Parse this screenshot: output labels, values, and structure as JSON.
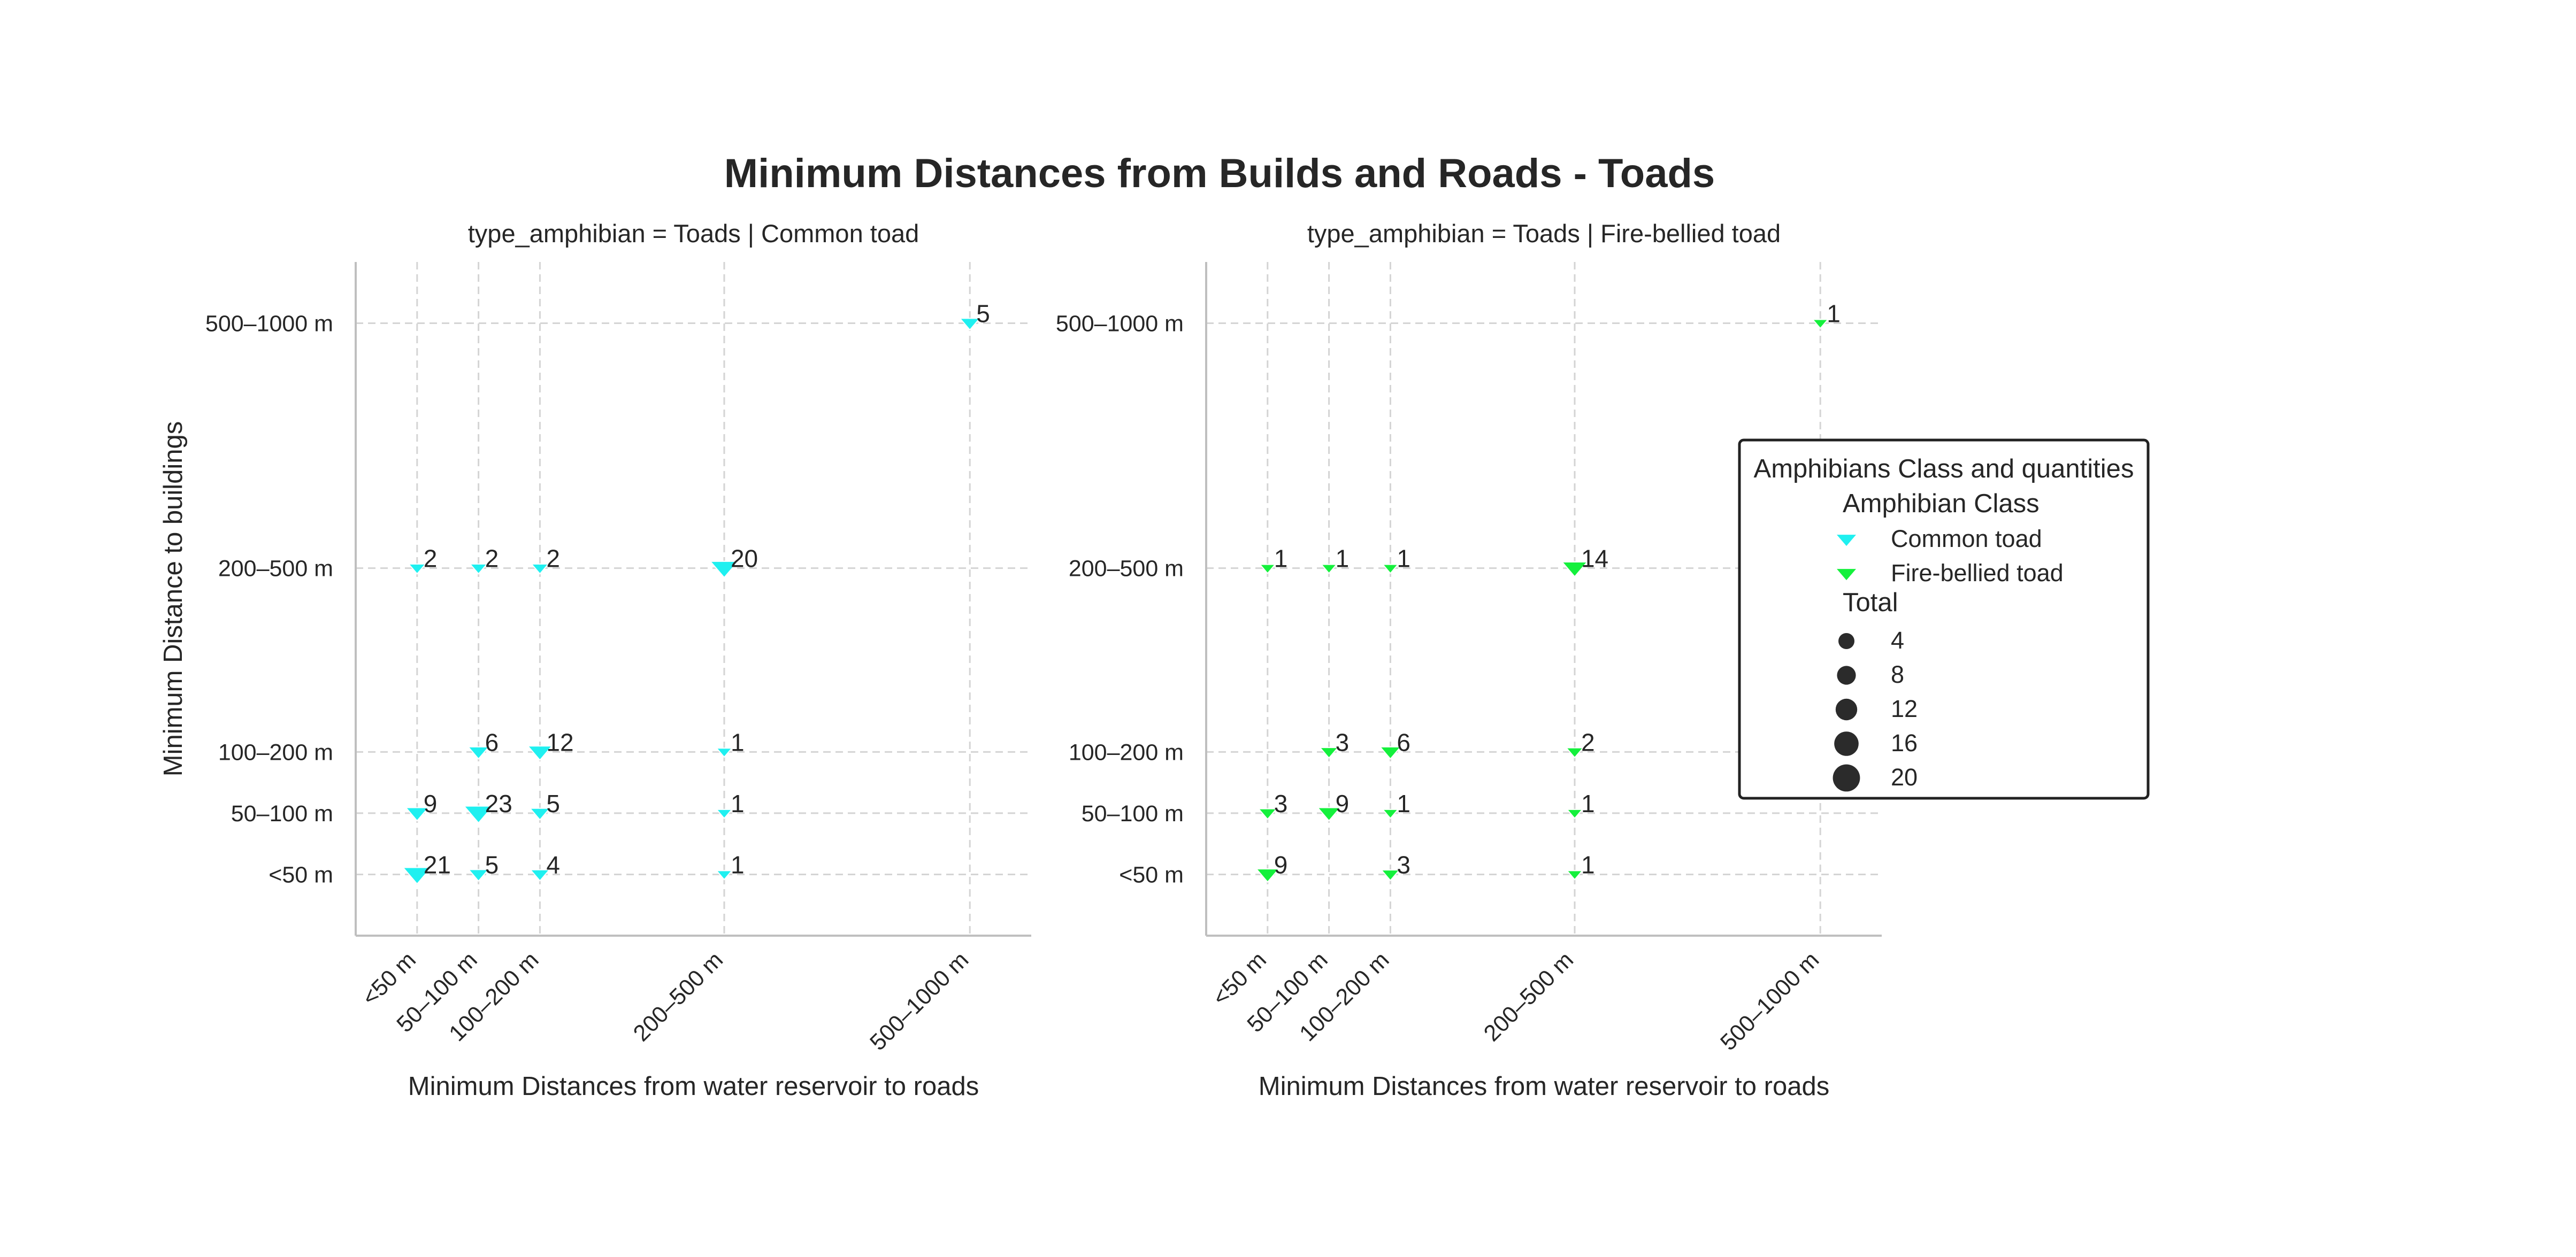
{
  "title": "Minimum Distances from Builds and Roads  - Toads",
  "categories": [
    "<50 m",
    "50–100 m",
    "100–200 m",
    "200–500 m",
    "500–1000 m"
  ],
  "colors": {
    "Common toad": "#1ff0f0",
    "Fire-bellied toad": "#14f03c",
    "axis": "#bfbfbf",
    "grid": "#d4d4d4",
    "size_marker": "#2b2b2b"
  },
  "legend": {
    "title": "Amphibians Class and quantities",
    "hue_title": "Amphibian Class",
    "hue_items": [
      "Common toad",
      "Fire-bellied toad"
    ],
    "size_title": "Total",
    "size_items": [
      "4",
      "8",
      "12",
      "16",
      "20"
    ],
    "placement": "right"
  },
  "chart_data": [
    {
      "type": "scatter",
      "title": "type_amphibian = Toads | Common toad",
      "xlabel": "Minimum Distances from water reservoir to roads",
      "ylabel": "Minimum Distance to buildings",
      "series_name": "Common toad",
      "marker": "triangle-down",
      "grid": true,
      "points": [
        {
          "x": "500–1000 m",
          "y": "500–1000 m",
          "total": 5
        },
        {
          "x": "<50 m",
          "y": "200–500 m",
          "total": 2
        },
        {
          "x": "50–100 m",
          "y": "200–500 m",
          "total": 2
        },
        {
          "x": "100–200 m",
          "y": "200–500 m",
          "total": 2
        },
        {
          "x": "200–500 m",
          "y": "200–500 m",
          "total": 20
        },
        {
          "x": "50–100 m",
          "y": "100–200 m",
          "total": 6
        },
        {
          "x": "100–200 m",
          "y": "100–200 m",
          "total": 12
        },
        {
          "x": "200–500 m",
          "y": "100–200 m",
          "total": 1
        },
        {
          "x": "<50 m",
          "y": "50–100 m",
          "total": 9
        },
        {
          "x": "50–100 m",
          "y": "50–100 m",
          "total": 23
        },
        {
          "x": "100–200 m",
          "y": "50–100 m",
          "total": 5
        },
        {
          "x": "200–500 m",
          "y": "50–100 m",
          "total": 1
        },
        {
          "x": "<50 m",
          "y": "<50 m",
          "total": 21
        },
        {
          "x": "50–100 m",
          "y": "<50 m",
          "total": 5
        },
        {
          "x": "100–200 m",
          "y": "<50 m",
          "total": 4
        },
        {
          "x": "200–500 m",
          "y": "<50 m",
          "total": 1
        }
      ]
    },
    {
      "type": "scatter",
      "title": "type_amphibian = Toads | Fire-bellied toad",
      "xlabel": "Minimum Distances from water reservoir to roads",
      "ylabel": "",
      "series_name": "Fire-bellied toad",
      "marker": "triangle-down",
      "grid": true,
      "points": [
        {
          "x": "500–1000 m",
          "y": "500–1000 m",
          "total": 1
        },
        {
          "x": "<50 m",
          "y": "200–500 m",
          "total": 1
        },
        {
          "x": "50–100 m",
          "y": "200–500 m",
          "total": 1
        },
        {
          "x": "100–200 m",
          "y": "200–500 m",
          "total": 1
        },
        {
          "x": "200–500 m",
          "y": "200–500 m",
          "total": 14
        },
        {
          "x": "50–100 m",
          "y": "100–200 m",
          "total": 3
        },
        {
          "x": "100–200 m",
          "y": "100–200 m",
          "total": 6
        },
        {
          "x": "200–500 m",
          "y": "100–200 m",
          "total": 2
        },
        {
          "x": "<50 m",
          "y": "50–100 m",
          "total": 3
        },
        {
          "x": "50–100 m",
          "y": "50–100 m",
          "total": 9
        },
        {
          "x": "100–200 m",
          "y": "50–100 m",
          "total": 1
        },
        {
          "x": "200–500 m",
          "y": "50–100 m",
          "total": 1
        },
        {
          "x": "<50 m",
          "y": "<50 m",
          "total": 9
        },
        {
          "x": "100–200 m",
          "y": "<50 m",
          "total": 3
        },
        {
          "x": "200–500 m",
          "y": "<50 m",
          "total": 1
        }
      ]
    }
  ]
}
